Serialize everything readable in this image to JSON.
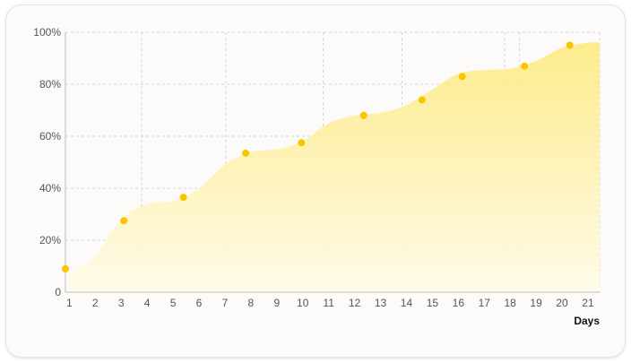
{
  "chart_data": {
    "type": "area",
    "xlabel": "Days",
    "ylabel": "",
    "x_ticks": [
      1,
      2,
      3,
      4,
      5,
      6,
      7,
      8,
      9,
      10,
      11,
      12,
      13,
      14,
      15,
      16,
      17,
      18,
      19,
      20,
      21
    ],
    "y_ticks": [
      "0",
      "20%",
      "40%",
      "60%",
      "80%",
      "100%"
    ],
    "xlim": [
      0.85,
      21.45
    ],
    "ylim": [
      0,
      100
    ],
    "grid": true,
    "colors": {
      "fill": "#fde97a",
      "fill_light": "#fffbe8",
      "point": "#f7c600",
      "grid": "#d4d4d4",
      "axis": "#bdbdbd"
    },
    "curve": [
      {
        "x": 1,
        "y": 7
      },
      {
        "x": 2,
        "y": 14
      },
      {
        "x": 3,
        "y": 28
      },
      {
        "x": 4,
        "y": 34
      },
      {
        "x": 5,
        "y": 35
      },
      {
        "x": 6,
        "y": 40
      },
      {
        "x": 7,
        "y": 49
      },
      {
        "x": 8,
        "y": 54
      },
      {
        "x": 9,
        "y": 55
      },
      {
        "x": 10,
        "y": 58
      },
      {
        "x": 11,
        "y": 65
      },
      {
        "x": 12,
        "y": 68
      },
      {
        "x": 13,
        "y": 69
      },
      {
        "x": 14,
        "y": 72
      },
      {
        "x": 15,
        "y": 78
      },
      {
        "x": 16,
        "y": 84
      },
      {
        "x": 17,
        "y": 85.5
      },
      {
        "x": 18,
        "y": 86
      },
      {
        "x": 19,
        "y": 89
      },
      {
        "x": 20,
        "y": 94
      },
      {
        "x": 21,
        "y": 96
      },
      {
        "x": 21.45,
        "y": 96
      }
    ],
    "points": [
      {
        "x": 0.85,
        "y": 9
      },
      {
        "x": 3.1,
        "y": 27.5
      },
      {
        "x": 5.4,
        "y": 36.5
      },
      {
        "x": 7.8,
        "y": 53.5
      },
      {
        "x": 9.95,
        "y": 57.5
      },
      {
        "x": 12.35,
        "y": 68
      },
      {
        "x": 14.6,
        "y": 74
      },
      {
        "x": 16.15,
        "y": 83
      },
      {
        "x": 18.55,
        "y": 87
      },
      {
        "x": 20.3,
        "y": 95
      }
    ]
  }
}
